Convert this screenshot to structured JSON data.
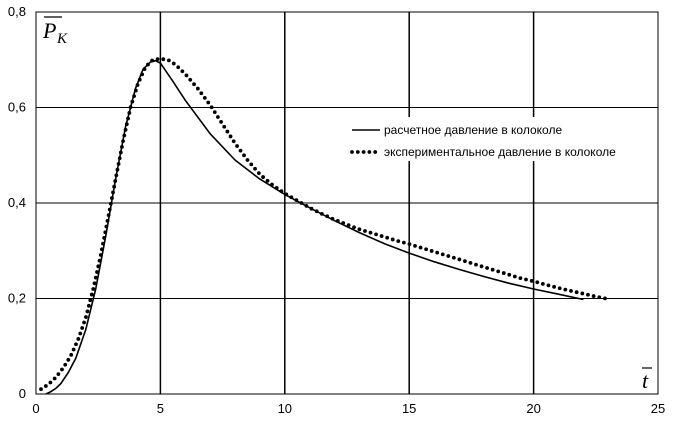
{
  "chart_data": {
    "type": "line",
    "ylabel": {
      "symbol": "P",
      "subscript": "К"
    },
    "xlabel": "t",
    "xlim": [
      0,
      25
    ],
    "ylim": [
      0,
      0.8
    ],
    "x_ticks": [
      0,
      5,
      10,
      15,
      20,
      25
    ],
    "x_tick_labels": [
      "0",
      "5",
      "10",
      "15",
      "20",
      "25"
    ],
    "y_ticks": [
      0,
      0.2,
      0.4,
      0.6,
      0.8
    ],
    "y_tick_labels": [
      "0",
      "0,2",
      "0,4",
      "0,6",
      "0,8"
    ],
    "grid": true,
    "legend_position": "right",
    "series": [
      {
        "name": "расчетное давление в колоколе",
        "style": "solid",
        "color": "#000000",
        "x": [
          0.4,
          0.6,
          0.8,
          1.0,
          1.3,
          1.6,
          2.0,
          2.4,
          2.8,
          3.2,
          3.6,
          4.0,
          4.3,
          4.6,
          4.8,
          5.0,
          5.5,
          6.0,
          7.0,
          8.0,
          9.0,
          10.0,
          11.0,
          12.0,
          13.0,
          14.0,
          15.0,
          16.0,
          17.0,
          18.0,
          19.0,
          20.0,
          21.0,
          22.0
        ],
        "y": [
          0.0,
          0.005,
          0.012,
          0.022,
          0.045,
          0.075,
          0.135,
          0.22,
          0.33,
          0.45,
          0.56,
          0.64,
          0.68,
          0.695,
          0.698,
          0.693,
          0.655,
          0.615,
          0.545,
          0.49,
          0.45,
          0.418,
          0.39,
          0.363,
          0.338,
          0.315,
          0.295,
          0.277,
          0.261,
          0.246,
          0.232,
          0.22,
          0.209,
          0.198
        ]
      },
      {
        "name": "экспериментальное давление в колоколе",
        "style": "dotted",
        "color": "#000000",
        "x": [
          0.2,
          0.5,
          0.8,
          1.1,
          1.4,
          1.7,
          2.0,
          2.3,
          2.6,
          2.9,
          3.2,
          3.5,
          3.8,
          4.1,
          4.4,
          4.7,
          5.0,
          5.3,
          5.6,
          6.0,
          6.5,
          7.0,
          7.5,
          8.0,
          8.5,
          9.0,
          9.5,
          10.0,
          10.5,
          11.0,
          11.5,
          12.0,
          12.5,
          13.0,
          13.5,
          14.0,
          14.5,
          15.0,
          15.5,
          16.0,
          16.5,
          17.0,
          17.5,
          18.0,
          18.5,
          19.0,
          19.5,
          20.0,
          20.5,
          21.0,
          21.5,
          22.0,
          22.5,
          23.0
        ],
        "y": [
          0.01,
          0.02,
          0.035,
          0.055,
          0.08,
          0.115,
          0.16,
          0.22,
          0.29,
          0.37,
          0.45,
          0.53,
          0.6,
          0.65,
          0.685,
          0.7,
          0.702,
          0.7,
          0.69,
          0.67,
          0.64,
          0.605,
          0.565,
          0.525,
          0.49,
          0.46,
          0.438,
          0.42,
          0.405,
          0.39,
          0.377,
          0.365,
          0.355,
          0.345,
          0.337,
          0.329,
          0.321,
          0.314,
          0.306,
          0.298,
          0.29,
          0.282,
          0.274,
          0.266,
          0.258,
          0.25,
          0.242,
          0.236,
          0.229,
          0.222,
          0.216,
          0.21,
          0.204,
          0.199
        ]
      }
    ]
  }
}
